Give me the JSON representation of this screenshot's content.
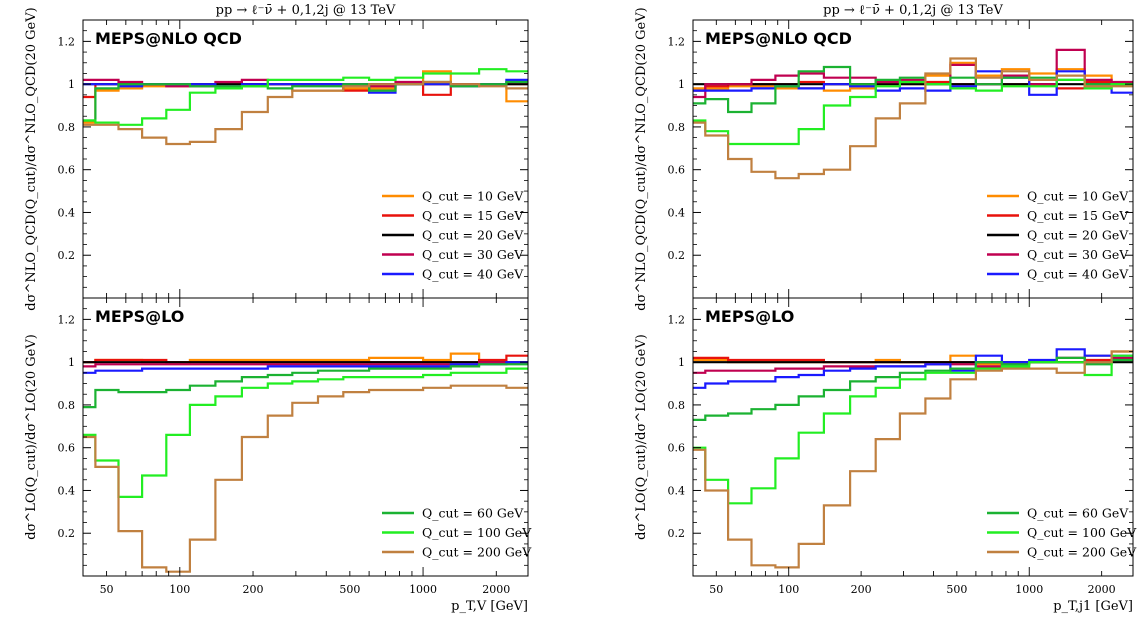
{
  "figure_title": "pp → ℓ⁻ν̄ + 0,1,2j @ 13 TeV",
  "x_axis_left": "p_T,V [GeV]",
  "x_axis_right": "p_T,j1 [GeV]",
  "x_ticks": [
    "50",
    "100",
    "200",
    "500",
    "1000",
    "2000"
  ],
  "colors": {
    "q10": "#ff8c00",
    "q15": "#e8120c",
    "q20": "#000000",
    "q30": "#c00050",
    "q40": "#1a1aff",
    "q60": "#1bb232",
    "q100": "#22ee22",
    "q200": "#c08040"
  },
  "chart_data": [
    {
      "type": "line",
      "panel": "left-top",
      "title": "pp → ℓ⁻ν̄ + 0,1,2j @ 13 TeV",
      "label": "MEPS@NLO QCD",
      "ylabel": "dσ^NLO_QCD(Q_cut)/dσ^NLO_QCD(20 GeV)",
      "xlim": [
        40,
        2700
      ],
      "ylim": [
        0,
        1.3
      ],
      "xscale": "log",
      "yticks": [
        "0.2",
        "0.4",
        "0.6",
        "0.8",
        "1",
        "1.2"
      ],
      "bin_edges": [
        40,
        45,
        56,
        70,
        88,
        110,
        140,
        180,
        230,
        290,
        370,
        470,
        600,
        770,
        1000,
        1300,
        1700,
        2200,
        2700
      ],
      "series": [
        {
          "name": "Q_cut = 10 GeV",
          "color": "#ff8c00",
          "values": [
            0.82,
            0.97,
            0.98,
            0.99,
            0.99,
            1.0,
            1.0,
            1.0,
            1.0,
            0.97,
            0.97,
            0.98,
            0.98,
            1.0,
            1.06,
            1.0,
            1.0,
            0.92
          ]
        },
        {
          "name": "Q_cut = 15 GeV",
          "color": "#e8120c",
          "values": [
            0.94,
            1.0,
            1.0,
            1.0,
            1.0,
            1.0,
            1.0,
            1.0,
            1.0,
            1.0,
            1.0,
            0.97,
            1.0,
            1.0,
            0.95,
            1.0,
            1.0,
            1.0
          ]
        },
        {
          "name": "Q_cut = 20 GeV",
          "color": "#000000",
          "values": [
            1.0,
            1.0,
            1.0,
            1.0,
            1.0,
            1.0,
            1.0,
            1.0,
            1.0,
            1.0,
            1.0,
            1.0,
            1.0,
            1.0,
            1.0,
            1.0,
            1.0,
            1.0
          ]
        },
        {
          "name": "Q_cut = 30 GeV",
          "color": "#c00050",
          "values": [
            1.02,
            1.02,
            1.01,
            1.0,
            0.99,
            0.99,
            1.01,
            1.02,
            1.0,
            1.0,
            1.0,
            1.0,
            0.99,
            1.01,
            1.0,
            1.0,
            1.0,
            1.01
          ]
        },
        {
          "name": "Q_cut = 40 GeV",
          "color": "#1a1aff",
          "values": [
            1.0,
            1.0,
            0.99,
            1.0,
            1.0,
            1.0,
            0.99,
            1.0,
            1.0,
            1.0,
            1.0,
            1.0,
            0.96,
            1.0,
            1.0,
            0.99,
            1.0,
            1.02
          ]
        },
        {
          "name": "Q_cut = 60 GeV",
          "color": "#1bb232",
          "values": [
            0.83,
            0.98,
            1.0,
            1.0,
            1.0,
            0.99,
            0.99,
            0.99,
            0.98,
            0.99,
            0.99,
            1.0,
            0.97,
            1.0,
            1.01,
            0.99,
            1.0,
            1.01
          ]
        },
        {
          "name": "Q_cut = 100 GeV",
          "color": "#22ee22",
          "values": [
            0.83,
            0.82,
            0.81,
            0.84,
            0.88,
            0.96,
            0.98,
            0.99,
            1.02,
            1.02,
            1.02,
            1.03,
            1.02,
            1.03,
            1.05,
            1.05,
            1.07,
            1.06
          ]
        },
        {
          "name": "Q_cut = 200 GeV",
          "color": "#c08040",
          "values": [
            0.81,
            0.81,
            0.79,
            0.75,
            0.72,
            0.73,
            0.79,
            0.87,
            0.94,
            0.97,
            0.97,
            0.99,
            1.0,
            1.0,
            1.01,
            1.0,
            0.99,
            0.98
          ]
        }
      ],
      "legend": [
        "Q_cut = 10 GeV",
        "Q_cut = 15 GeV",
        "Q_cut = 20 GeV",
        "Q_cut = 30 GeV",
        "Q_cut = 40 GeV"
      ],
      "legend_placement": "lower-right"
    },
    {
      "type": "line",
      "panel": "left-bottom",
      "label": "MEPS@LO",
      "xlabel": "p_T,V [GeV]",
      "ylabel": "dσ^LO(Q_cut)/dσ^LO(20 GeV)",
      "xlim": [
        40,
        2700
      ],
      "ylim": [
        0,
        1.3
      ],
      "xscale": "log",
      "yticks": [
        "0.2",
        "0.4",
        "0.6",
        "0.8",
        "1",
        "1.2"
      ],
      "bin_edges": [
        40,
        45,
        56,
        70,
        88,
        110,
        140,
        180,
        230,
        290,
        370,
        470,
        600,
        770,
        1000,
        1300,
        1700,
        2200,
        2700
      ],
      "series": [
        {
          "name": "Q_cut = 10 GeV",
          "color": "#ff8c00",
          "values": [
            1.0,
            1.01,
            1.01,
            1.0,
            1.0,
            1.01,
            1.01,
            1.01,
            1.01,
            1.01,
            1.01,
            1.01,
            1.02,
            1.02,
            1.01,
            1.04,
            1.0,
            1.0
          ]
        },
        {
          "name": "Q_cut = 15 GeV",
          "color": "#e8120c",
          "values": [
            1.0,
            1.01,
            1.01,
            1.01,
            1.0,
            1.0,
            1.0,
            1.0,
            1.0,
            1.0,
            1.0,
            1.0,
            1.0,
            1.0,
            1.0,
            1.0,
            1.01,
            1.03
          ]
        },
        {
          "name": "Q_cut = 20 GeV",
          "color": "#000000",
          "values": [
            1.0,
            1.0,
            1.0,
            1.0,
            1.0,
            1.0,
            1.0,
            1.0,
            1.0,
            1.0,
            1.0,
            1.0,
            1.0,
            1.0,
            1.0,
            1.0,
            1.0,
            1.0
          ]
        },
        {
          "name": "Q_cut = 30 GeV",
          "color": "#c00050",
          "values": [
            0.98,
            0.99,
            0.99,
            0.99,
            0.99,
            0.99,
            0.99,
            0.99,
            0.99,
            0.99,
            0.99,
            0.99,
            0.99,
            0.99,
            0.99,
            0.99,
            1.0,
            1.0
          ]
        },
        {
          "name": "Q_cut = 40 GeV",
          "color": "#1a1aff",
          "values": [
            0.95,
            0.96,
            0.96,
            0.97,
            0.97,
            0.97,
            0.97,
            0.97,
            0.98,
            0.98,
            0.98,
            0.98,
            0.98,
            0.98,
            0.98,
            0.99,
            0.99,
            1.0
          ]
        },
        {
          "name": "Q_cut = 60 GeV",
          "color": "#1bb232",
          "values": [
            0.79,
            0.87,
            0.86,
            0.86,
            0.87,
            0.89,
            0.91,
            0.93,
            0.94,
            0.95,
            0.96,
            0.96,
            0.97,
            0.97,
            0.97,
            0.98,
            0.99,
            0.99
          ]
        },
        {
          "name": "Q_cut = 100 GeV",
          "color": "#22ee22",
          "values": [
            0.66,
            0.54,
            0.37,
            0.47,
            0.66,
            0.8,
            0.84,
            0.88,
            0.9,
            0.91,
            0.92,
            0.93,
            0.93,
            0.93,
            0.94,
            0.95,
            0.95,
            0.97
          ]
        },
        {
          "name": "Q_cut = 200 GeV",
          "color": "#c08040",
          "values": [
            0.65,
            0.51,
            0.21,
            0.04,
            0.02,
            0.17,
            0.45,
            0.65,
            0.75,
            0.81,
            0.84,
            0.86,
            0.87,
            0.87,
            0.88,
            0.89,
            0.89,
            0.88
          ]
        }
      ],
      "legend": [
        "Q_cut = 60 GeV",
        "Q_cut = 100 GeV",
        "Q_cut = 200 GeV"
      ],
      "legend_placement": "lower-right"
    },
    {
      "type": "line",
      "panel": "right-top",
      "title": "pp → ℓ⁻ν̄ + 0,1,2j @ 13 TeV",
      "label": "MEPS@NLO QCD",
      "ylabel": "dσ^NLO_QCD(Q_cut)/dσ^NLO_QCD(20 GeV)",
      "xlim": [
        40,
        2700
      ],
      "ylim": [
        0,
        1.3
      ],
      "xscale": "log",
      "yticks": [
        "0.2",
        "0.4",
        "0.6",
        "0.8",
        "1",
        "1.2"
      ],
      "bin_edges": [
        40,
        45,
        56,
        70,
        88,
        110,
        140,
        180,
        230,
        290,
        370,
        470,
        600,
        770,
        1000,
        1300,
        1700,
        2200,
        2700
      ],
      "series": [
        {
          "name": "Q_cut = 10 GeV",
          "color": "#ff8c00",
          "values": [
            0.98,
            0.98,
            0.99,
            0.99,
            0.98,
            0.98,
            0.97,
            0.98,
            1.0,
            1.0,
            1.04,
            1.1,
            1.04,
            1.07,
            1.05,
            1.07,
            1.04,
            1.0
          ]
        },
        {
          "name": "Q_cut = 15 GeV",
          "color": "#e8120c",
          "values": [
            0.97,
            0.99,
            1.0,
            1.0,
            1.0,
            1.01,
            1.0,
            1.0,
            1.01,
            1.01,
            1.01,
            1.0,
            1.0,
            1.0,
            1.0,
            0.98,
            1.01,
            1.0
          ]
        },
        {
          "name": "Q_cut = 20 GeV",
          "color": "#000000",
          "values": [
            1.0,
            1.0,
            1.0,
            1.0,
            1.0,
            1.0,
            1.0,
            1.0,
            1.0,
            1.0,
            1.0,
            1.0,
            1.0,
            1.0,
            1.0,
            1.0,
            1.0,
            1.0
          ]
        },
        {
          "name": "Q_cut = 30 GeV",
          "color": "#c00050",
          "values": [
            0.94,
            1.0,
            1.0,
            1.02,
            1.04,
            1.05,
            1.03,
            1.03,
            1.01,
            1.02,
            1.0,
            1.09,
            1.0,
            1.04,
            1.0,
            1.16,
            1.02,
            1.01
          ]
        },
        {
          "name": "Q_cut = 40 GeV",
          "color": "#1a1aff",
          "values": [
            0.97,
            0.97,
            0.97,
            0.98,
            0.99,
            0.98,
            1.0,
            0.99,
            0.97,
            0.98,
            0.97,
            0.99,
            1.06,
            1.03,
            0.95,
            1.06,
            0.98,
            0.96
          ]
        },
        {
          "name": "Q_cut = 60 GeV",
          "color": "#1bb232",
          "values": [
            0.91,
            0.93,
            0.87,
            0.91,
            0.99,
            1.06,
            1.08,
            1.0,
            1.02,
            1.03,
            1.0,
            1.03,
            1.0,
            1.03,
            1.03,
            1.02,
            1.0,
            1.0
          ]
        },
        {
          "name": "Q_cut = 100 GeV",
          "color": "#22ee22",
          "values": [
            0.83,
            0.78,
            0.72,
            0.72,
            0.72,
            0.79,
            0.9,
            0.94,
            0.99,
            1.01,
            1.0,
            0.98,
            0.97,
            0.99,
            0.99,
            1.02,
            0.98,
            1.0
          ]
        },
        {
          "name": "Q_cut = 200 GeV",
          "color": "#c08040",
          "values": [
            0.82,
            0.76,
            0.65,
            0.59,
            0.56,
            0.58,
            0.6,
            0.71,
            0.84,
            0.91,
            1.05,
            1.12,
            1.03,
            1.06,
            1.02,
            1.04,
            0.99,
            0.99
          ]
        }
      ],
      "legend": [
        "Q_cut = 10 GeV",
        "Q_cut = 15 GeV",
        "Q_cut = 20 GeV",
        "Q_cut = 30 GeV",
        "Q_cut = 40 GeV"
      ],
      "legend_placement": "lower-right"
    },
    {
      "type": "line",
      "panel": "right-bottom",
      "label": "MEPS@LO",
      "xlabel": "p_T,j1 [GeV]",
      "ylabel": "dσ^LO(Q_cut)/dσ^LO(20 GeV)",
      "xlim": [
        40,
        2700
      ],
      "ylim": [
        0,
        1.3
      ],
      "xscale": "log",
      "yticks": [
        "0.2",
        "0.4",
        "0.6",
        "0.8",
        "1",
        "1.2"
      ],
      "bin_edges": [
        40,
        45,
        56,
        70,
        88,
        110,
        140,
        180,
        230,
        290,
        370,
        470,
        600,
        770,
        1000,
        1300,
        1700,
        2200,
        2700
      ],
      "series": [
        {
          "name": "Q_cut = 10 GeV",
          "color": "#ff8c00",
          "values": [
            1.01,
            1.01,
            1.0,
            1.0,
            1.0,
            1.0,
            1.0,
            1.0,
            1.01,
            1.0,
            1.0,
            1.03,
            0.99,
            0.99,
            1.0,
            1.0,
            1.03,
            1.05
          ]
        },
        {
          "name": "Q_cut = 15 GeV",
          "color": "#e8120c",
          "values": [
            1.02,
            1.02,
            1.01,
            1.01,
            1.01,
            1.01,
            1.0,
            1.0,
            1.0,
            1.0,
            1.0,
            1.0,
            1.0,
            1.0,
            1.0,
            1.0,
            1.01,
            1.01
          ]
        },
        {
          "name": "Q_cut = 20 GeV",
          "color": "#000000",
          "values": [
            1.0,
            1.0,
            1.0,
            1.0,
            1.0,
            1.0,
            1.0,
            1.0,
            1.0,
            1.0,
            1.0,
            1.0,
            1.0,
            1.0,
            1.0,
            1.0,
            1.0,
            1.0
          ]
        },
        {
          "name": "Q_cut = 30 GeV",
          "color": "#c00050",
          "values": [
            0.95,
            0.96,
            0.96,
            0.96,
            0.97,
            0.97,
            0.98,
            0.98,
            0.98,
            0.98,
            0.99,
            0.99,
            0.98,
            0.99,
            1.0,
            1.02,
            1.0,
            1.02
          ]
        },
        {
          "name": "Q_cut = 40 GeV",
          "color": "#1a1aff",
          "values": [
            0.88,
            0.9,
            0.91,
            0.91,
            0.93,
            0.94,
            0.96,
            0.97,
            0.98,
            0.98,
            0.99,
            0.96,
            1.03,
            1.0,
            1.01,
            1.06,
            1.03,
            1.03
          ]
        },
        {
          "name": "Q_cut = 60 GeV",
          "color": "#1bb232",
          "values": [
            0.73,
            0.75,
            0.76,
            0.78,
            0.8,
            0.84,
            0.87,
            0.91,
            0.93,
            0.95,
            0.96,
            0.97,
            1.0,
            0.99,
            1.0,
            1.02,
            0.99,
            1.01
          ]
        },
        {
          "name": "Q_cut = 100 GeV",
          "color": "#22ee22",
          "values": [
            0.6,
            0.45,
            0.34,
            0.41,
            0.55,
            0.67,
            0.76,
            0.84,
            0.88,
            0.92,
            0.95,
            0.95,
            0.97,
            0.98,
            1.0,
            1.0,
            0.94,
            1.03
          ]
        },
        {
          "name": "Q_cut = 200 GeV",
          "color": "#c08040",
          "values": [
            0.59,
            0.4,
            0.17,
            0.05,
            0.04,
            0.15,
            0.33,
            0.49,
            0.64,
            0.76,
            0.83,
            0.92,
            0.96,
            0.97,
            0.97,
            0.95,
            1.0,
            1.05
          ]
        }
      ],
      "legend": [
        "Q_cut = 60 GeV",
        "Q_cut = 100 GeV",
        "Q_cut = 200 GeV"
      ],
      "legend_placement": "lower-right"
    }
  ]
}
